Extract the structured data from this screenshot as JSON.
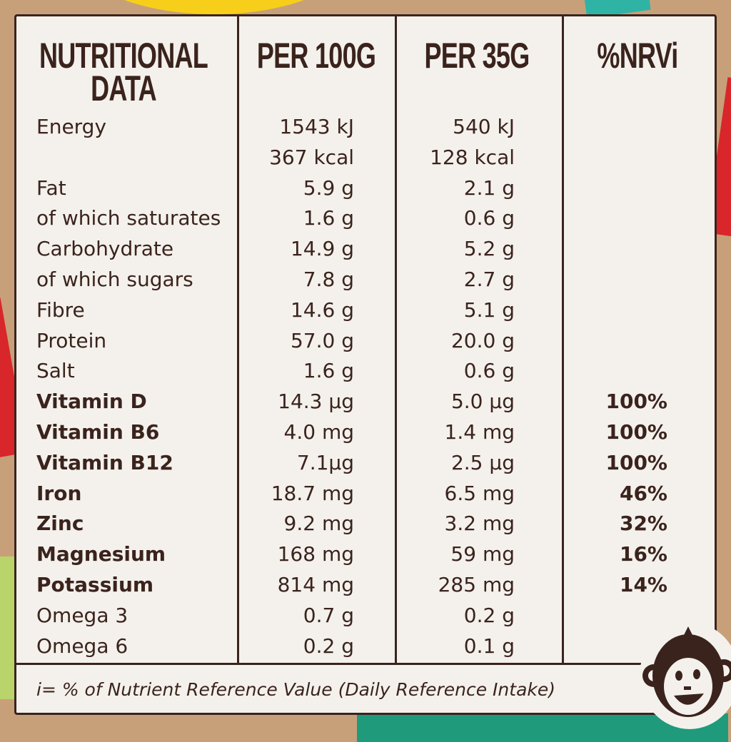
{
  "header": {
    "col_label": "NUTRITIONAL DATA",
    "col_per100": "PER 100G",
    "col_per35": "PER 35G",
    "col_nrv": "%NRVi"
  },
  "rows": [
    {
      "label": "Energy",
      "per100": "1543 kJ",
      "per35": "540 kJ",
      "nrv": "",
      "bold": false
    },
    {
      "label": "",
      "per100": "367 kcal",
      "per35": "128 kcal",
      "nrv": "",
      "bold": false
    },
    {
      "label": "Fat",
      "per100": "5.9 g",
      "per35": "2.1 g",
      "nrv": "",
      "bold": false
    },
    {
      "label": "of which saturates",
      "per100": "1.6 g",
      "per35": "0.6 g",
      "nrv": "",
      "bold": false
    },
    {
      "label": "Carbohydrate",
      "per100": "14.9 g",
      "per35": "5.2 g",
      "nrv": "",
      "bold": false
    },
    {
      "label": "of which sugars",
      "per100": "7.8 g",
      "per35": "2.7 g",
      "nrv": "",
      "bold": false
    },
    {
      "label": "Fibre",
      "per100": "14.6 g",
      "per35": "5.1 g",
      "nrv": "",
      "bold": false
    },
    {
      "label": "Protein",
      "per100": "57.0 g",
      "per35": "20.0 g",
      "nrv": "",
      "bold": false
    },
    {
      "label": "Salt",
      "per100": "1.6 g",
      "per35": "0.6 g",
      "nrv": "",
      "bold": false
    },
    {
      "label": "Vitamin D",
      "per100": "14.3 µg",
      "per35": "5.0 µg",
      "nrv": "100%",
      "bold": true
    },
    {
      "label": "Vitamin B6",
      "per100": "4.0 mg",
      "per35": "1.4 mg",
      "nrv": "100%",
      "bold": true
    },
    {
      "label": "Vitamin B12",
      "per100": "7.1µg",
      "per35": "2.5 µg",
      "nrv": "100%",
      "bold": true
    },
    {
      "label": "Iron",
      "per100": "18.7 mg",
      "per35": "6.5 mg",
      "nrv": "46%",
      "bold": true
    },
    {
      "label": "Zinc",
      "per100": "9.2 mg",
      "per35": "3.2 mg",
      "nrv": "32%",
      "bold": true
    },
    {
      "label": "Magnesium",
      "per100": "168 mg",
      "per35": "59 mg",
      "nrv": "16%",
      "bold": true
    },
    {
      "label": "Potassium",
      "per100": "814 mg",
      "per35": "285 mg",
      "nrv": "14%",
      "bold": true
    },
    {
      "label": "Omega 3",
      "per100": "0.7 g",
      "per35": "0.2 g",
      "nrv": "",
      "bold": false
    },
    {
      "label": "Omega 6",
      "per100": "0.2 g",
      "per35": "0.1 g",
      "nrv": "",
      "bold": false
    }
  ],
  "footnote": "i= % of Nutrient Reference Value (Daily Reference Intake)",
  "logo": {
    "name": "monkey-logo-icon"
  },
  "colors": {
    "text": "#3b231d",
    "card": "#f4f1ec",
    "background": "#c7a07a"
  }
}
